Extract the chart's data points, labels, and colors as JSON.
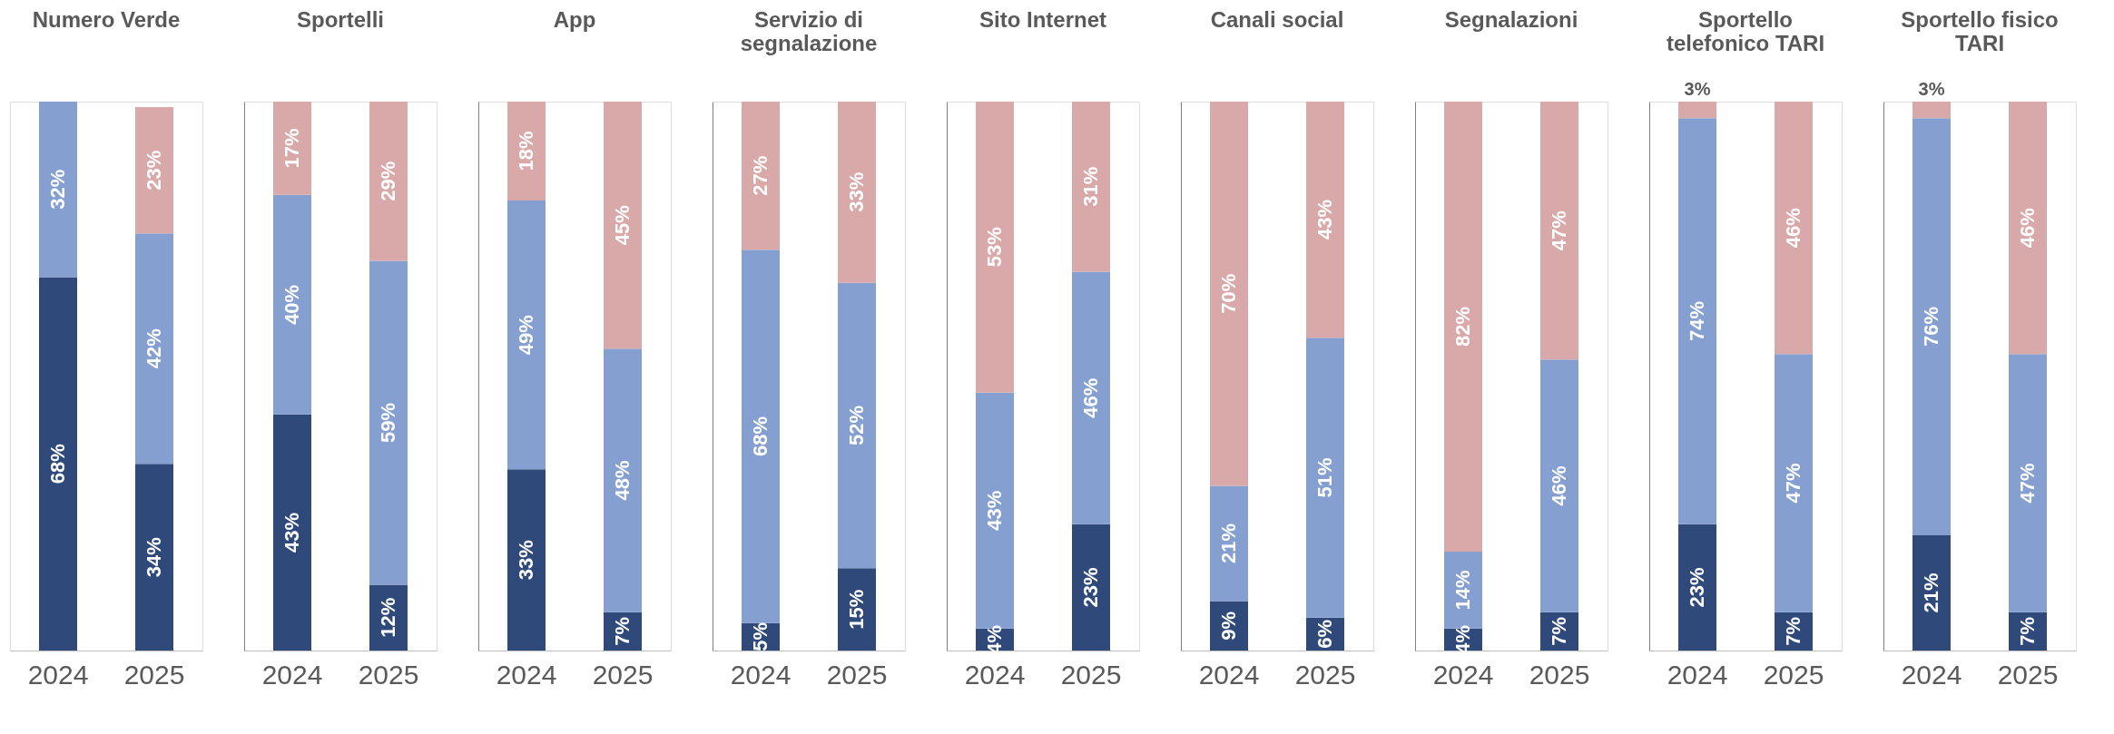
{
  "chart_data": [
    {
      "type": "bar",
      "stacked": true,
      "title": "Numero Verde",
      "categories": [
        "2024",
        "2025"
      ],
      "ylim": [
        0,
        100
      ],
      "tick_labels": "x",
      "grid": false,
      "legend": false,
      "series": [
        {
          "color": "#2f4a7a",
          "values": [
            68,
            34
          ],
          "value_labels": [
            "68%",
            "34%"
          ]
        },
        {
          "color": "#849fd0",
          "values": [
            32,
            42
          ],
          "value_labels": [
            "32%",
            "42%"
          ]
        },
        {
          "color": "#d9a8a8",
          "values": [
            null,
            23
          ],
          "value_labels": [
            null,
            "23%"
          ]
        }
      ]
    },
    {
      "type": "bar",
      "stacked": true,
      "title": "Sportelli",
      "categories": [
        "2024",
        "2025"
      ],
      "ylim": [
        0,
        100
      ],
      "tick_labels": "x",
      "grid": false,
      "legend": false,
      "series": [
        {
          "color": "#2f4a7a",
          "values": [
            43,
            12
          ],
          "value_labels": [
            "43%",
            "12%"
          ]
        },
        {
          "color": "#849fd0",
          "values": [
            40,
            59
          ],
          "value_labels": [
            "40%",
            "59%"
          ]
        },
        {
          "color": "#d9a8a8",
          "values": [
            17,
            29
          ],
          "value_labels": [
            "17%",
            "29%"
          ]
        }
      ]
    },
    {
      "type": "bar",
      "stacked": true,
      "title": "App",
      "categories": [
        "2024",
        "2025"
      ],
      "ylim": [
        0,
        100
      ],
      "tick_labels": "x",
      "grid": false,
      "legend": false,
      "series": [
        {
          "color": "#2f4a7a",
          "values": [
            33,
            7
          ],
          "value_labels": [
            "33%",
            "7%"
          ]
        },
        {
          "color": "#849fd0",
          "values": [
            49,
            48
          ],
          "value_labels": [
            "49%",
            "48%"
          ]
        },
        {
          "color": "#d9a8a8",
          "values": [
            18,
            45
          ],
          "value_labels": [
            "18%",
            "45%"
          ]
        }
      ]
    },
    {
      "type": "bar",
      "stacked": true,
      "title": "Servizio di\nsegnalazione",
      "categories": [
        "2024",
        "2025"
      ],
      "ylim": [
        0,
        100
      ],
      "tick_labels": "x",
      "grid": false,
      "legend": false,
      "series": [
        {
          "color": "#2f4a7a",
          "values": [
            5,
            15
          ],
          "value_labels": [
            "5%",
            "15%"
          ]
        },
        {
          "color": "#849fd0",
          "values": [
            68,
            52
          ],
          "value_labels": [
            "68%",
            "52%"
          ]
        },
        {
          "color": "#d9a8a8",
          "values": [
            27,
            33
          ],
          "value_labels": [
            "27%",
            "33%"
          ]
        }
      ]
    },
    {
      "type": "bar",
      "stacked": true,
      "title": "Sito Internet",
      "categories": [
        "2024",
        "2025"
      ],
      "ylim": [
        0,
        100
      ],
      "tick_labels": "x",
      "grid": false,
      "legend": false,
      "series": [
        {
          "color": "#2f4a7a",
          "values": [
            4,
            23
          ],
          "value_labels": [
            "4%",
            "23%"
          ]
        },
        {
          "color": "#849fd0",
          "values": [
            43,
            46
          ],
          "value_labels": [
            "43%",
            "46%"
          ]
        },
        {
          "color": "#d9a8a8",
          "values": [
            53,
            31
          ],
          "value_labels": [
            "53%",
            "31%"
          ]
        }
      ]
    },
    {
      "type": "bar",
      "stacked": true,
      "title": "Canali social",
      "categories": [
        "2024",
        "2025"
      ],
      "ylim": [
        0,
        100
      ],
      "tick_labels": "x",
      "grid": false,
      "legend": false,
      "series": [
        {
          "color": "#2f4a7a",
          "values": [
            9,
            6
          ],
          "value_labels": [
            "9%",
            "6%"
          ]
        },
        {
          "color": "#849fd0",
          "values": [
            21,
            51
          ],
          "value_labels": [
            "21%",
            "51%"
          ]
        },
        {
          "color": "#d9a8a8",
          "values": [
            70,
            43
          ],
          "value_labels": [
            "70%",
            "43%"
          ]
        }
      ]
    },
    {
      "type": "bar",
      "stacked": true,
      "title": "Segnalazioni",
      "categories": [
        "2024",
        "2025"
      ],
      "ylim": [
        0,
        100
      ],
      "tick_labels": "x",
      "grid": false,
      "legend": false,
      "series": [
        {
          "color": "#2f4a7a",
          "values": [
            4,
            7
          ],
          "value_labels": [
            "4%",
            "7%"
          ]
        },
        {
          "color": "#849fd0",
          "values": [
            14,
            46
          ],
          "value_labels": [
            "14%",
            "46%"
          ]
        },
        {
          "color": "#d9a8a8",
          "values": [
            82,
            47
          ],
          "value_labels": [
            "82%",
            "47%"
          ]
        }
      ]
    },
    {
      "type": "bar",
      "stacked": true,
      "title": "Sportello\ntelefonico TARI",
      "categories": [
        "2024",
        "2025"
      ],
      "ylim": [
        0,
        100
      ],
      "tick_labels": "x",
      "grid": false,
      "legend": false,
      "series": [
        {
          "color": "#2f4a7a",
          "values": [
            23,
            7
          ],
          "value_labels": [
            "23%",
            "7%"
          ]
        },
        {
          "color": "#849fd0",
          "values": [
            74,
            47
          ],
          "value_labels": [
            "74%",
            "47%"
          ]
        },
        {
          "color": "#d9a8a8",
          "values": [
            3,
            46
          ],
          "value_labels": [
            "3%",
            "46%"
          ]
        }
      ]
    },
    {
      "type": "bar",
      "stacked": true,
      "title": "Sportello fisico\nTARI",
      "categories": [
        "2024",
        "2025"
      ],
      "ylim": [
        0,
        100
      ],
      "tick_labels": "x",
      "grid": false,
      "legend": false,
      "series": [
        {
          "color": "#2f4a7a",
          "values": [
            21,
            7
          ],
          "value_labels": [
            "21%",
            "7%"
          ]
        },
        {
          "color": "#849fd0",
          "values": [
            76,
            47
          ],
          "value_labels": [
            "76%",
            "47%"
          ]
        },
        {
          "color": "#d9a8a8",
          "values": [
            3,
            46
          ],
          "value_labels": [
            "3%",
            "46%"
          ]
        }
      ]
    }
  ]
}
